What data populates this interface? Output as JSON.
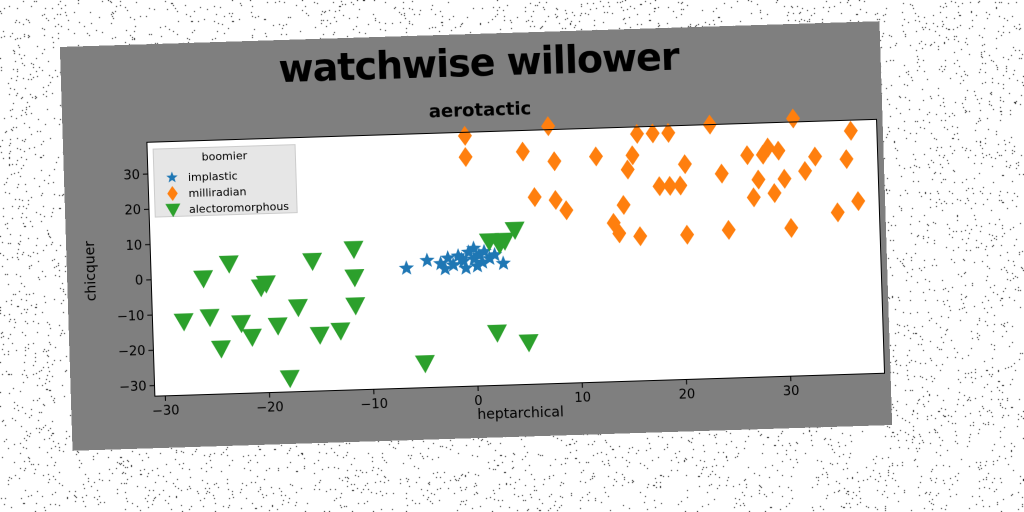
{
  "chart_data": {
    "type": "scatter",
    "title": "watchwise willower",
    "subtitle": "aerotactic",
    "xlabel": "heptarchical",
    "ylabel": "chicquer",
    "xlim": [
      -31,
      39
    ],
    "ylim": [
      -33,
      39
    ],
    "xticks": [
      -30,
      -20,
      -10,
      0,
      10,
      20,
      30
    ],
    "xtick_labels": [
      "−30",
      "−20",
      "−10",
      "0",
      "10",
      "20",
      "30"
    ],
    "yticks": [
      -30,
      -20,
      -10,
      0,
      10,
      20,
      30
    ],
    "ytick_labels": [
      "−30",
      "−20",
      "−10",
      "0",
      "10",
      "20",
      "30"
    ],
    "grid": false,
    "legend": {
      "title": "boomier",
      "placement": "top-left"
    },
    "series": [
      {
        "name": "implastic",
        "marker": "star",
        "color": "#1f77b4",
        "points": [
          [
            -6.5,
            1
          ],
          [
            -4.5,
            3
          ],
          [
            -3.2,
            2
          ],
          [
            -2.5,
            3.5
          ],
          [
            -2,
            1.5
          ],
          [
            -1.5,
            4
          ],
          [
            -1,
            2.5
          ],
          [
            -0.5,
            5
          ],
          [
            0,
            3
          ],
          [
            0,
            6
          ],
          [
            0.5,
            4
          ],
          [
            0.8,
            2
          ],
          [
            1,
            5
          ],
          [
            1.5,
            3
          ],
          [
            2,
            4
          ],
          [
            -0.8,
            0.5
          ],
          [
            0.3,
            1
          ],
          [
            -2.8,
            0.5
          ],
          [
            2.8,
            1.5
          ],
          [
            -1.2,
            3
          ]
        ]
      },
      {
        "name": "milliradian",
        "marker": "diamond",
        "color": "#ff7f0e",
        "points": [
          [
            -0.5,
            38
          ],
          [
            -0.5,
            32
          ],
          [
            5,
            33
          ],
          [
            7.5,
            40
          ],
          [
            8,
            30
          ],
          [
            6,
            20
          ],
          [
            8,
            19
          ],
          [
            9,
            16
          ],
          [
            12,
            31
          ],
          [
            13.5,
            12
          ],
          [
            14,
            9
          ],
          [
            14.5,
            17
          ],
          [
            15,
            27
          ],
          [
            15.5,
            31
          ],
          [
            16,
            8
          ],
          [
            16,
            37
          ],
          [
            17.5,
            37
          ],
          [
            18,
            22
          ],
          [
            19,
            37
          ],
          [
            19,
            22
          ],
          [
            20,
            22
          ],
          [
            20.5,
            28
          ],
          [
            20.5,
            8
          ],
          [
            23,
            39
          ],
          [
            24,
            25
          ],
          [
            24.5,
            9
          ],
          [
            26.5,
            30
          ],
          [
            27,
            18
          ],
          [
            27.5,
            23
          ],
          [
            28,
            30
          ],
          [
            28.5,
            32
          ],
          [
            29,
            19
          ],
          [
            29.5,
            31
          ],
          [
            30,
            23
          ],
          [
            30.5,
            9
          ],
          [
            31,
            40
          ],
          [
            32,
            25
          ],
          [
            33,
            29
          ],
          [
            35,
            13
          ],
          [
            36,
            28
          ],
          [
            36.5,
            36
          ],
          [
            37,
            16
          ]
        ]
      },
      {
        "name": "alectoromorphous",
        "marker": "triangle-down",
        "color": "#2ca02c",
        "points": [
          [
            -28,
            -12
          ],
          [
            -26,
            0
          ],
          [
            -25.5,
            -11
          ],
          [
            -24.5,
            -20
          ],
          [
            -23.5,
            4
          ],
          [
            -22.5,
            -13
          ],
          [
            -21.5,
            -17
          ],
          [
            -20.5,
            -3
          ],
          [
            -20,
            -2
          ],
          [
            -19,
            -14
          ],
          [
            -18,
            -29
          ],
          [
            -17,
            -9
          ],
          [
            -15.5,
            4
          ],
          [
            -15,
            -17
          ],
          [
            -13,
            -16
          ],
          [
            -11.5,
            7
          ],
          [
            -11.5,
            -1
          ],
          [
            -11.5,
            -9
          ],
          [
            -5,
            -26
          ],
          [
            1.5,
            8
          ],
          [
            2,
            -18
          ],
          [
            2.5,
            7
          ],
          [
            3,
            8
          ],
          [
            4,
            11
          ],
          [
            5,
            -21
          ]
        ]
      }
    ]
  }
}
